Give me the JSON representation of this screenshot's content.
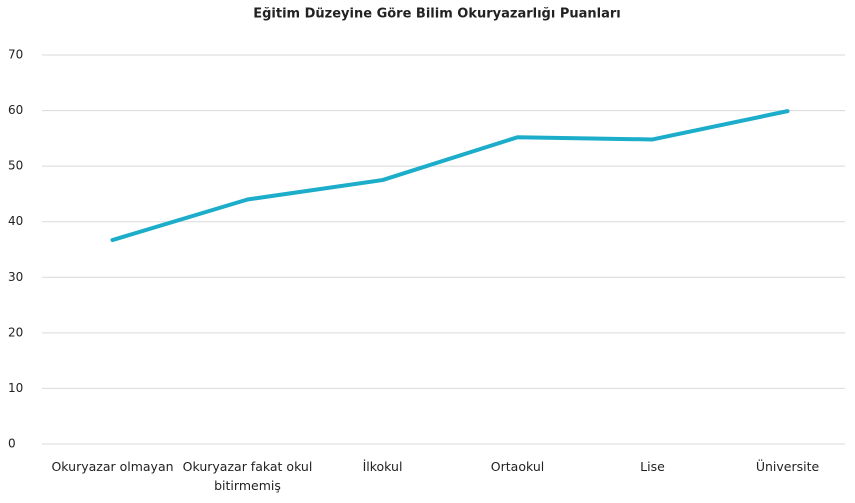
{
  "chart_data": {
    "type": "line",
    "title": "Eğitim Düzeyine Göre Bilim Okuryazarlığı Puanları",
    "categories": [
      "Okuryazar olmayan",
      "Okuryazar fakat okul bitirmemiş",
      "İlkokul",
      "Ortaokul",
      "Lise",
      "Üniversite"
    ],
    "series": [
      {
        "name": null,
        "color": "#1badc9",
        "values": [
          36.7,
          44,
          47.5,
          55.2,
          54.8,
          59.9
        ]
      }
    ],
    "ylim": [
      0,
      70
    ],
    "yticks": [
      0,
      10,
      20,
      30,
      40,
      50,
      60,
      70
    ],
    "grid": true
  }
}
